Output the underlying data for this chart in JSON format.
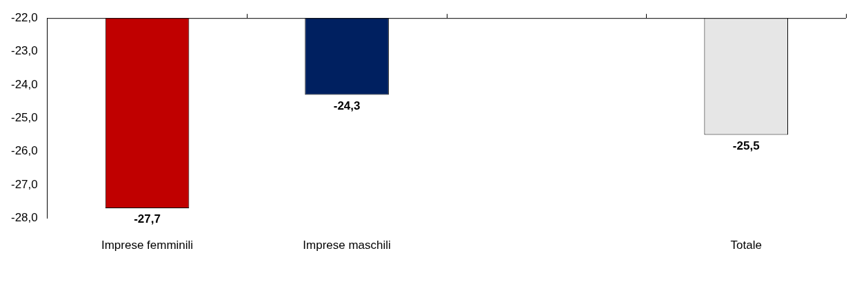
{
  "chart_data": {
    "type": "bar",
    "categories": [
      "Imprese femminili",
      "Imprese maschili",
      null,
      "Totale"
    ],
    "values": [
      -27.7,
      -24.3,
      null,
      -25.5
    ],
    "colors": [
      "#c00000",
      "#002060",
      null,
      "#e6e6e6"
    ],
    "value_labels": [
      "-27,7",
      "-24,3",
      null,
      "-25,5"
    ],
    "ylim": [
      -28,
      -22
    ],
    "yticks": [
      {
        "value": -22,
        "label": "-22,0"
      },
      {
        "value": -23,
        "label": "-23,0"
      },
      {
        "value": -24,
        "label": "-24,0"
      },
      {
        "value": -25,
        "label": "-25,0"
      },
      {
        "value": -26,
        "label": "-26,0"
      },
      {
        "value": -27,
        "label": "-27,0"
      },
      {
        "value": -28,
        "label": "-28,0"
      }
    ],
    "grid": false,
    "legend": false
  }
}
